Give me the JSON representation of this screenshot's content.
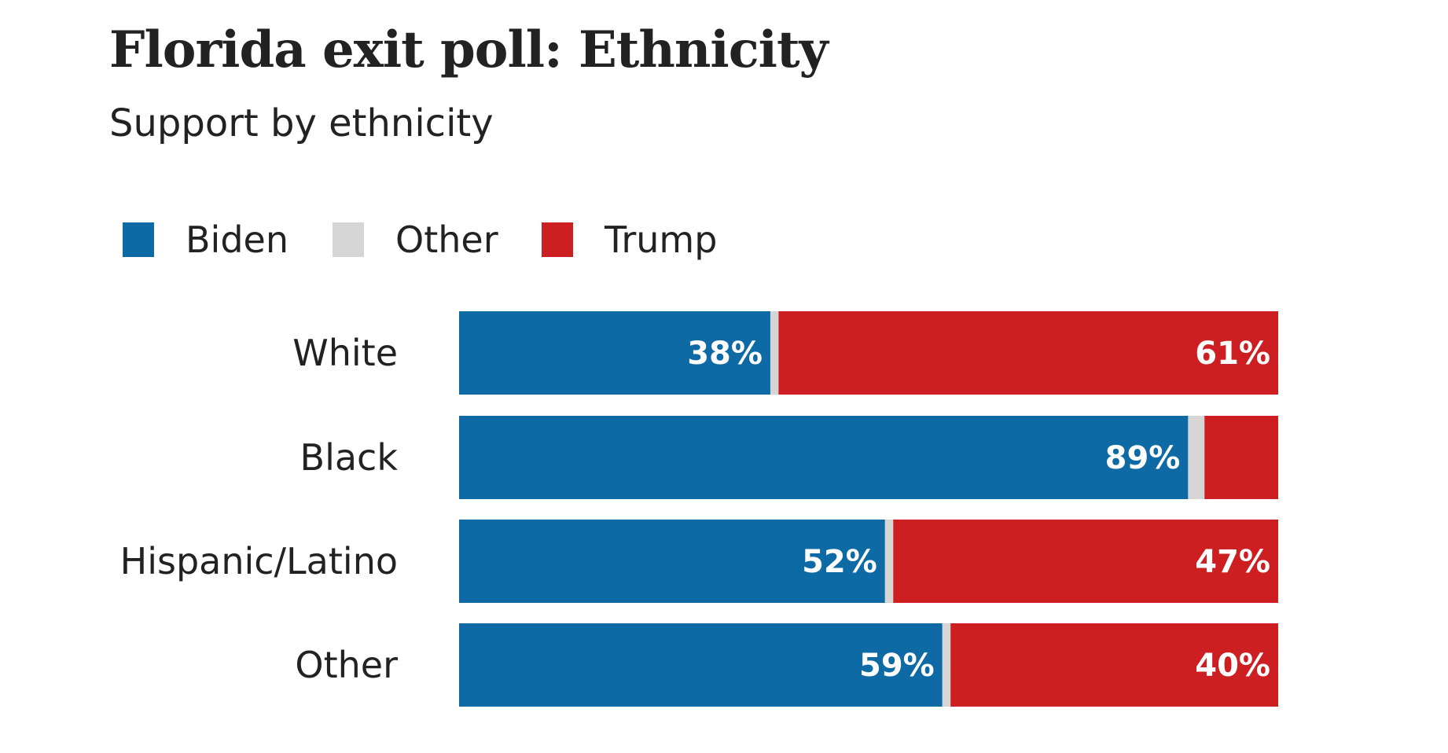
{
  "title": "Florida exit poll: Ethnicity",
  "subtitle": "Support by ethnicity",
  "legend": [
    {
      "name": "Biden",
      "color": "#0d6aa5"
    },
    {
      "name": "Other",
      "color": "#d5d5d5"
    },
    {
      "name": "Trump",
      "color": "#cd1f21"
    }
  ],
  "chart_data": {
    "type": "bar",
    "orientation": "horizontal",
    "stacked": true,
    "title": "Florida exit poll: Ethnicity",
    "subtitle": "Support by ethnicity",
    "xlabel": "",
    "ylabel": "",
    "xlim": [
      0,
      100
    ],
    "grid": false,
    "legend_position": "top-left",
    "categories": [
      "White",
      "Black",
      "Hispanic/Latino",
      "Other"
    ],
    "series": [
      {
        "name": "Biden",
        "color": "#0d6aa5",
        "values": [
          38,
          89,
          52,
          59
        ],
        "labels": [
          "38%",
          "89%",
          "52%",
          "59%"
        ]
      },
      {
        "name": "Other",
        "color": "#d5d5d5",
        "values": [
          1,
          2,
          1,
          1
        ],
        "labels": [
          "",
          "",
          "",
          ""
        ]
      },
      {
        "name": "Trump",
        "color": "#cd1f21",
        "values": [
          61,
          9,
          47,
          40
        ],
        "labels": [
          "61%",
          "",
          "47%",
          "40%"
        ]
      }
    ]
  }
}
